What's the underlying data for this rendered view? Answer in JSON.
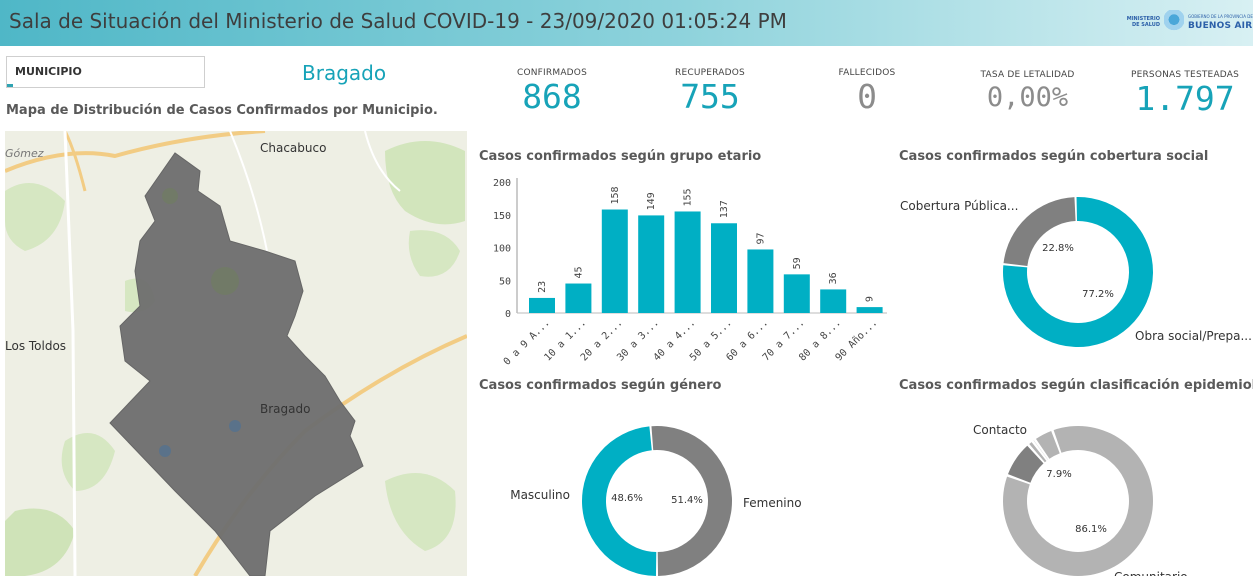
{
  "header": {
    "title": "Sala de Situación del Ministerio de Salud COVID-19 - 23/09/2020 01:05:24 PM",
    "logo_left": "MINISTERIO DE SALUD",
    "logo_small": "GOBIERNO DE LA PROVINCIA DE",
    "logo_big": "BUENOS AIRES"
  },
  "filter": {
    "label": "MUNICIPIO",
    "selected": "Bragado"
  },
  "map": {
    "title": "Mapa de Distribución de Casos Confirmados por Municipio.",
    "places": [
      "Gómez",
      "Chacabuco",
      "Los Toldos",
      "Bragado"
    ],
    "colors": {
      "region": "#6f6f6f",
      "background": "#eeefe4",
      "green": "#cfe3b8",
      "road": "#f2cc84"
    }
  },
  "kpis": [
    {
      "label": "CONFIRMADOS",
      "value": "868"
    },
    {
      "label": "RECUPERADOS",
      "value": "755"
    },
    {
      "label": "FALLECIDOS",
      "value": "0"
    },
    {
      "label": "TASA DE LETALIDAD",
      "value": "0,00%"
    },
    {
      "label": "PERSONAS TESTEADAS",
      "value": "1.797"
    }
  ],
  "colors": {
    "accent": "#17a3b8",
    "bar": "#00afc4",
    "grey": "#808080",
    "lightgrey": "#b3b3b3"
  },
  "chart_data": [
    {
      "type": "bar",
      "title": "Casos confirmados según grupo etario",
      "categories": [
        "0 a 9 A...",
        "10 a 1...",
        "20 a 2...",
        "30 a 3...",
        "40 a 4...",
        "50 a 5...",
        "60 a 6...",
        "70 a 7...",
        "80 a 8...",
        "90 Año..."
      ],
      "values": [
        23,
        45,
        158,
        149,
        155,
        137,
        97,
        59,
        36,
        9
      ],
      "yticks": [
        0,
        50,
        100,
        150,
        200
      ],
      "ylim": [
        0,
        200
      ]
    },
    {
      "type": "pie",
      "title": "Casos confirmados según cobertura social",
      "slices": [
        {
          "label": "Cobertura Pública...",
          "value": 22.8,
          "pct": "22.8%"
        },
        {
          "label": "Obra social/Prepa...",
          "value": 77.2,
          "pct": "77.2%"
        }
      ]
    },
    {
      "type": "pie",
      "title": "Casos confirmados según género",
      "slices": [
        {
          "label": "Masculino",
          "value": 48.6,
          "pct": "48.6%"
        },
        {
          "label": "Femenino",
          "value": 51.4,
          "pct": "51.4%"
        }
      ]
    },
    {
      "type": "pie",
      "title": "Casos confirmados según clasificación epidemioló...",
      "slices": [
        {
          "label": "Contacto",
          "value": 7.9,
          "pct": "7.9%"
        },
        {
          "label": "",
          "value": 1.2,
          "pct": ""
        },
        {
          "label": "",
          "value": 0.6,
          "pct": ""
        },
        {
          "label": "",
          "value": 4.2,
          "pct": ""
        },
        {
          "label": "Comunitario",
          "value": 86.1,
          "pct": "86.1%"
        }
      ]
    }
  ]
}
